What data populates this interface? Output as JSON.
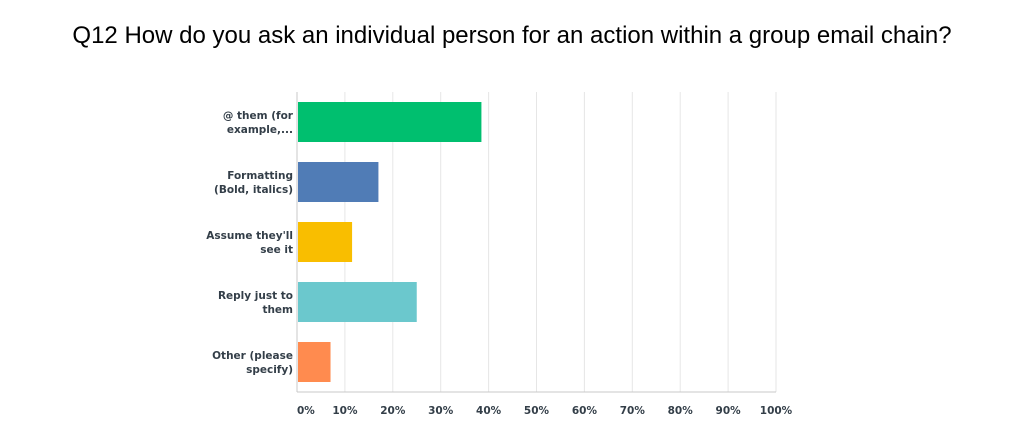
{
  "chart_data": {
    "type": "bar",
    "orientation": "horizontal",
    "title": "Q12 How do you ask an individual person for an action within a group email chain?",
    "categories": [
      [
        "@ them (for",
        "example,..."
      ],
      [
        "Formatting",
        "(Bold, italics)"
      ],
      [
        "Assume they'll",
        "see it"
      ],
      [
        "Reply just to",
        "them"
      ],
      [
        "Other (please",
        "specify)"
      ]
    ],
    "values": [
      38.5,
      17,
      11.5,
      25,
      7
    ],
    "colors": [
      "#00bf6f",
      "#507cb6",
      "#f9be00",
      "#6bc8cd",
      "#ff8b4f"
    ],
    "xlim": [
      0,
      100
    ],
    "xticks": [
      "0%",
      "10%",
      "20%",
      "30%",
      "40%",
      "50%",
      "60%",
      "70%",
      "80%",
      "90%",
      "100%"
    ],
    "grid": true,
    "xlabel": "",
    "ylabel": ""
  }
}
